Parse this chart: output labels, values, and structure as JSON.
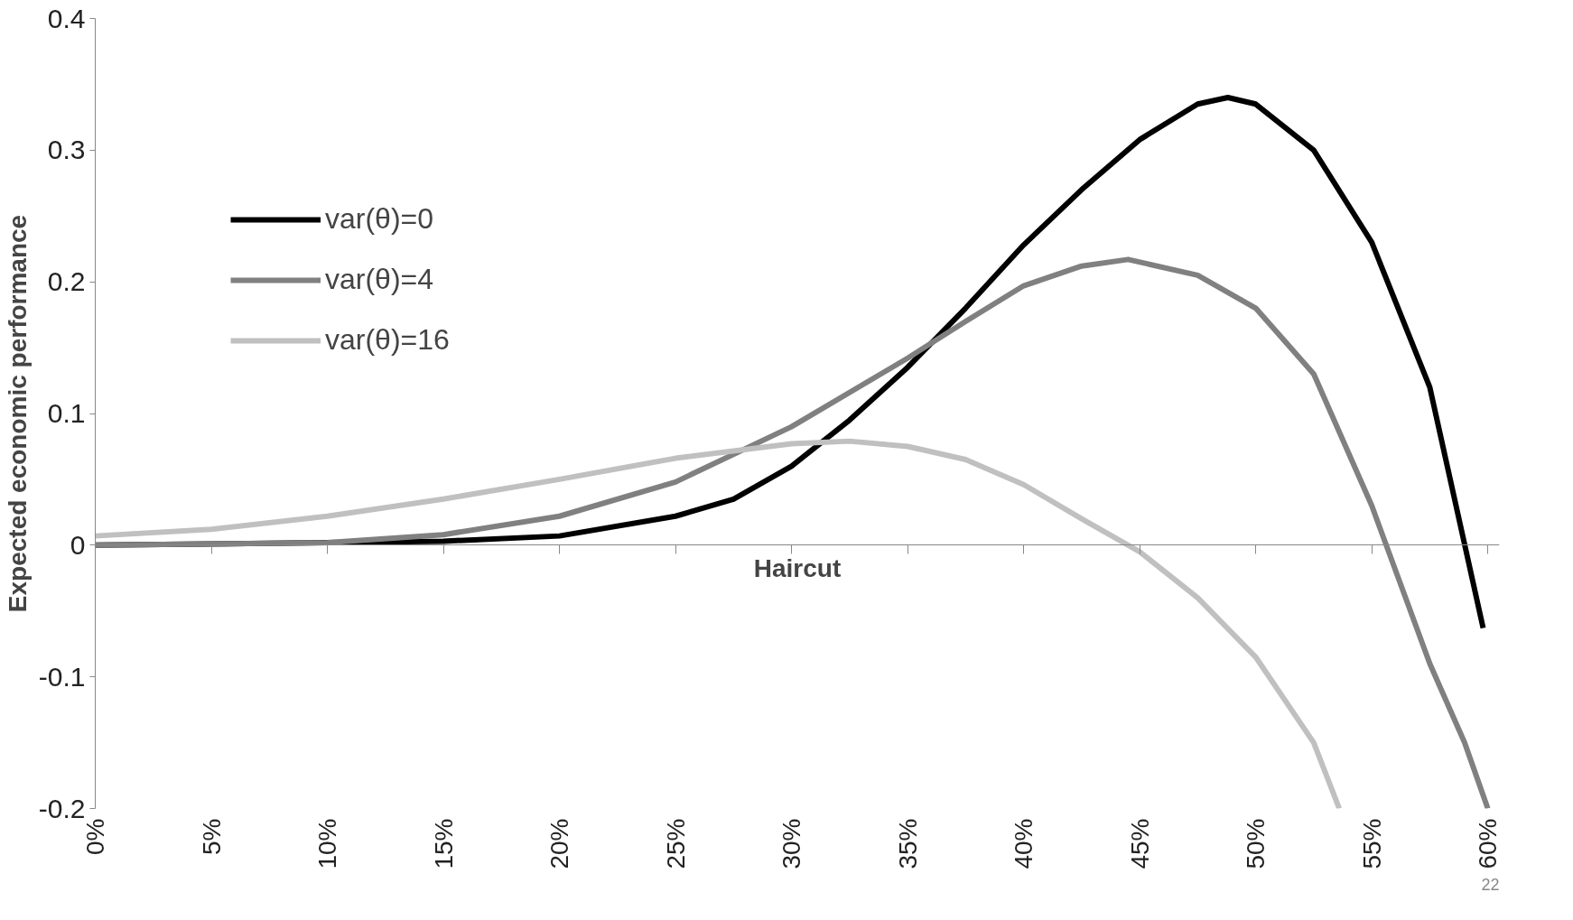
{
  "chart_data": {
    "type": "line",
    "xlabel": "Haircut",
    "ylabel": "Expected economic performance",
    "xlim": [
      0,
      60.5
    ],
    "ylim": [
      -0.2,
      0.4
    ],
    "xticks": [
      {
        "value": 0,
        "label": "0%"
      },
      {
        "value": 5,
        "label": "5%"
      },
      {
        "value": 10,
        "label": "10%"
      },
      {
        "value": 15,
        "label": "15%"
      },
      {
        "value": 20,
        "label": "20%"
      },
      {
        "value": 25,
        "label": "25%"
      },
      {
        "value": 30,
        "label": "30%"
      },
      {
        "value": 35,
        "label": "35%"
      },
      {
        "value": 40,
        "label": "40%"
      },
      {
        "value": 45,
        "label": "45%"
      },
      {
        "value": 50,
        "label": "50%"
      },
      {
        "value": 55,
        "label": "55%"
      },
      {
        "value": 60,
        "label": "60%"
      }
    ],
    "yticks": [
      -0.2,
      -0.1,
      0,
      0.1,
      0.2,
      0.3,
      0.4
    ],
    "legend": "top left",
    "marker": "none",
    "line_style": "solid",
    "annotations": [
      "22"
    ],
    "series": [
      {
        "name": "var(θ)=0",
        "color": "#000000",
        "x": [
          0,
          10,
          15,
          20,
          25,
          27.5,
          30,
          32.5,
          35,
          37.5,
          40,
          42.5,
          45,
          47.5,
          48.8,
          50,
          52.5,
          55,
          57.5,
          59.8
        ],
        "values": [
          0,
          0.002,
          0.003,
          0.007,
          0.022,
          0.035,
          0.06,
          0.095,
          0.135,
          0.18,
          0.228,
          0.27,
          0.308,
          0.335,
          0.34,
          0.335,
          0.3,
          0.23,
          0.12,
          -0.063
        ]
      },
      {
        "name": "var(θ)=4",
        "color": "#808080",
        "x": [
          0,
          10,
          15,
          20,
          25,
          30,
          35,
          37.5,
          40,
          42.5,
          44.5,
          47.5,
          50,
          52.5,
          55,
          57.5,
          59,
          60
        ],
        "values": [
          0,
          0.002,
          0.008,
          0.022,
          0.048,
          0.09,
          0.142,
          0.17,
          0.197,
          0.212,
          0.217,
          0.205,
          0.18,
          0.13,
          0.03,
          -0.09,
          -0.15,
          -0.2
        ]
      },
      {
        "name": "var(θ)=16",
        "color": "#c0c0c0",
        "x": [
          0,
          5,
          10,
          15,
          20,
          25,
          30,
          32.5,
          35,
          37.5,
          40,
          42.5,
          45,
          47.5,
          50,
          52.5,
          53.6
        ],
        "values": [
          0.007,
          0.012,
          0.022,
          0.035,
          0.05,
          0.066,
          0.077,
          0.079,
          0.075,
          0.065,
          0.046,
          0.02,
          -0.005,
          -0.04,
          -0.085,
          -0.15,
          -0.2
        ]
      }
    ]
  }
}
